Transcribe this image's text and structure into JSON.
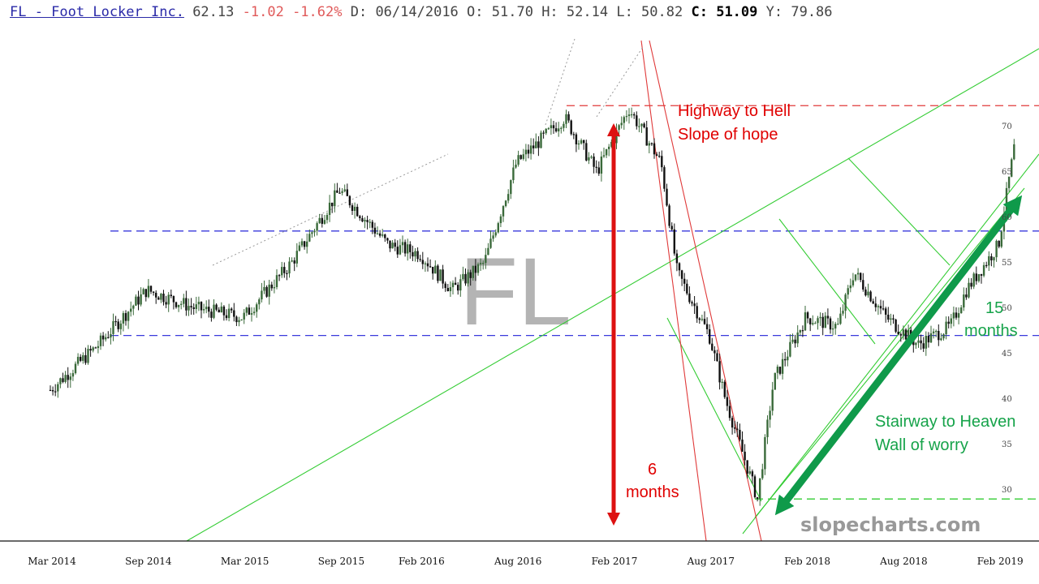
{
  "header": {
    "symbol_title": "FL - Foot Locker Inc.",
    "last": "62.13",
    "change": "-1.02",
    "change_pct": "-1.62%",
    "date": "D: 06/14/2016",
    "open": "O: 51.70",
    "high": "H: 52.14",
    "low": "L: 50.82",
    "close_label": "C:",
    "close_value": "51.09",
    "y_value": "Y: 79.86"
  },
  "watermark": "FL",
  "brand": "slopecharts.com",
  "colors": {
    "bull": "#3a6a3a",
    "bear": "#111111",
    "blue_dash": "#3a3adc",
    "red_dash": "#e03a3a",
    "green_line": "#33cc33",
    "red_arrow": "#dd1111",
    "green_arrow": "#0f9a4a",
    "red_text": "#e00000",
    "green_text": "#16a34a"
  },
  "annotations": {
    "highway": "Highway to Hell",
    "slope": "Slope of hope",
    "six": "6",
    "months_a": "months",
    "fifteen": "15",
    "months_b": "months",
    "stairway": "Stairway to Heaven",
    "wall": "Wall of worry"
  },
  "chart_data": {
    "type": "line",
    "title": "FL - Foot Locker Inc.",
    "xlabel": "",
    "ylabel": "",
    "x_tick_labels": [
      "Mar 2014",
      "Sep 2014",
      "Mar 2015",
      "Sep 2015",
      "Feb 2016",
      "Aug 2016",
      "Feb 2017",
      "Aug 2017",
      "Feb 2018",
      "Aug 2018",
      "Feb 2019"
    ],
    "y_ticks": [
      30,
      35,
      40,
      45,
      50,
      55,
      60,
      65,
      70
    ],
    "ylim": [
      27,
      73
    ],
    "grid": false,
    "series": [
      {
        "x": [
          "2014-03",
          "2014-06",
          "2014-09",
          "2014-12",
          "2015-03",
          "2015-06",
          "2015-09",
          "2015-12",
          "2016-02",
          "2016-04",
          "2016-06",
          "2016-08",
          "2016-11",
          "2017-01",
          "2017-03",
          "2017-05",
          "2017-06",
          "2017-08",
          "2017-09",
          "2017-11",
          "2017-12",
          "2018-02",
          "2018-04",
          "2018-05",
          "2018-07",
          "2018-09",
          "2018-11",
          "2018-12",
          "2019-02",
          "2019-03"
        ],
        "values": [
          41,
          46,
          52,
          50,
          49,
          55,
          63,
          57,
          56,
          52,
          55,
          66,
          71,
          65,
          72,
          66,
          54,
          47,
          40,
          29,
          42,
          49,
          48,
          54,
          49,
          46,
          48,
          52,
          57,
          68
        ]
      }
    ],
    "levels": [
      {
        "value": 47.0,
        "style": "blue-dash"
      },
      {
        "value": 58.5,
        "style": "blue-dash"
      },
      {
        "value": 72.3,
        "style": "red-dash"
      },
      {
        "value": 29.0,
        "style": "green-dash"
      }
    ]
  }
}
